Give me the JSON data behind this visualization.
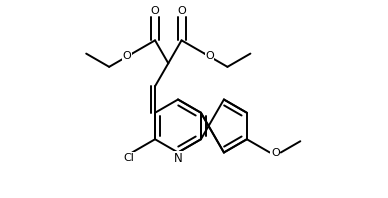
{
  "background": "#ffffff",
  "line_color": "#000000",
  "lw": 1.4,
  "figsize": [
    3.88,
    1.98
  ],
  "dpi": 100,
  "xlim": [
    0,
    3.88
  ],
  "ylim": [
    0,
    1.98
  ]
}
